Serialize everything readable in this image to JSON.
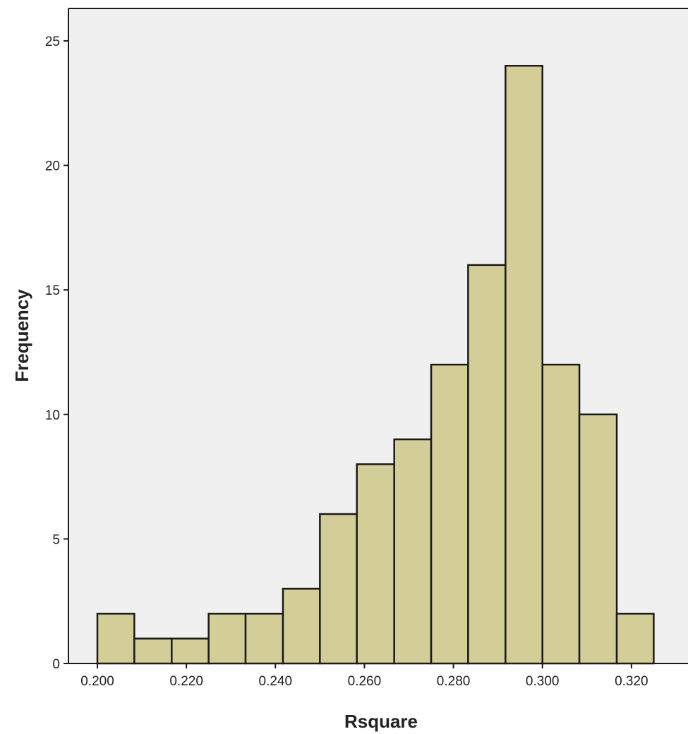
{
  "chart_data": {
    "type": "bar",
    "subtype": "histogram",
    "xlabel": "Rsquare",
    "ylabel": "Frequency",
    "bin_width": 0.0083,
    "bins": [
      {
        "start": 0.2,
        "end": 0.2083,
        "count": 2
      },
      {
        "start": 0.2083,
        "end": 0.2167,
        "count": 1
      },
      {
        "start": 0.2167,
        "end": 0.225,
        "count": 1
      },
      {
        "start": 0.225,
        "end": 0.2333,
        "count": 2
      },
      {
        "start": 0.2333,
        "end": 0.2417,
        "count": 2
      },
      {
        "start": 0.2417,
        "end": 0.25,
        "count": 3
      },
      {
        "start": 0.25,
        "end": 0.2583,
        "count": 6
      },
      {
        "start": 0.2583,
        "end": 0.2667,
        "count": 8
      },
      {
        "start": 0.2667,
        "end": 0.275,
        "count": 9
      },
      {
        "start": 0.275,
        "end": 0.2833,
        "count": 12
      },
      {
        "start": 0.2833,
        "end": 0.2917,
        "count": 16
      },
      {
        "start": 0.2917,
        "end": 0.3,
        "count": 24
      },
      {
        "start": 0.3,
        "end": 0.3083,
        "count": 12
      },
      {
        "start": 0.3083,
        "end": 0.3167,
        "count": 10
      },
      {
        "start": 0.3167,
        "end": 0.325,
        "count": 2
      }
    ],
    "xticks": [
      {
        "value": 0.2,
        "label": "0.200"
      },
      {
        "value": 0.22,
        "label": "0.220"
      },
      {
        "value": 0.24,
        "label": "0.240"
      },
      {
        "value": 0.26,
        "label": "0.260"
      },
      {
        "value": 0.28,
        "label": "0.280"
      },
      {
        "value": 0.3,
        "label": "0.300"
      },
      {
        "value": 0.32,
        "label": "0.320"
      }
    ],
    "yticks": [
      {
        "value": 0,
        "label": "0"
      },
      {
        "value": 5,
        "label": "5"
      },
      {
        "value": 10,
        "label": "10"
      },
      {
        "value": 15,
        "label": "15"
      },
      {
        "value": 20,
        "label": "20"
      },
      {
        "value": 25,
        "label": "25"
      }
    ],
    "xlim": [
      0.1935,
      0.3335
    ],
    "ylim": [
      0,
      26.3
    ],
    "grid": false,
    "legend": "none",
    "colors": {
      "plot_background": "#f0f0f0",
      "bar_fill": "#d3ce97",
      "bar_stroke": "#1a1a1a",
      "axis": "#1a1a1a",
      "page_background": "#ffffff"
    }
  }
}
